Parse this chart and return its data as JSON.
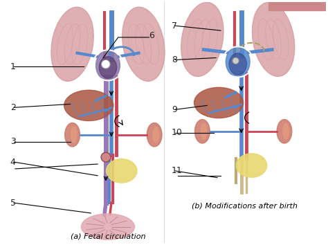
{
  "title_a": "(a) Fetal circulation",
  "title_b": "(b) Modifications after birth",
  "background_color": "#ffffff",
  "figsize": [
    4.74,
    3.54
  ],
  "dpi": 100,
  "lung_color": "#d4959a",
  "heart_fetal_color": "#8877aa",
  "heart_birth_color": "#5588cc",
  "vessel_blue": "#5588cc",
  "vessel_red": "#cc4455",
  "vessel_purple": "#9977bb",
  "liver_color": "#aa5540",
  "kidney_color": "#cc7766",
  "bladder_color": "#e8d870",
  "placenta_color": "#e0a8b0",
  "placenta_detail": "#c08090",
  "ligament_color": "#ccbb88",
  "font_size_label": 9,
  "font_size_title": 8,
  "label_color": "#222222"
}
